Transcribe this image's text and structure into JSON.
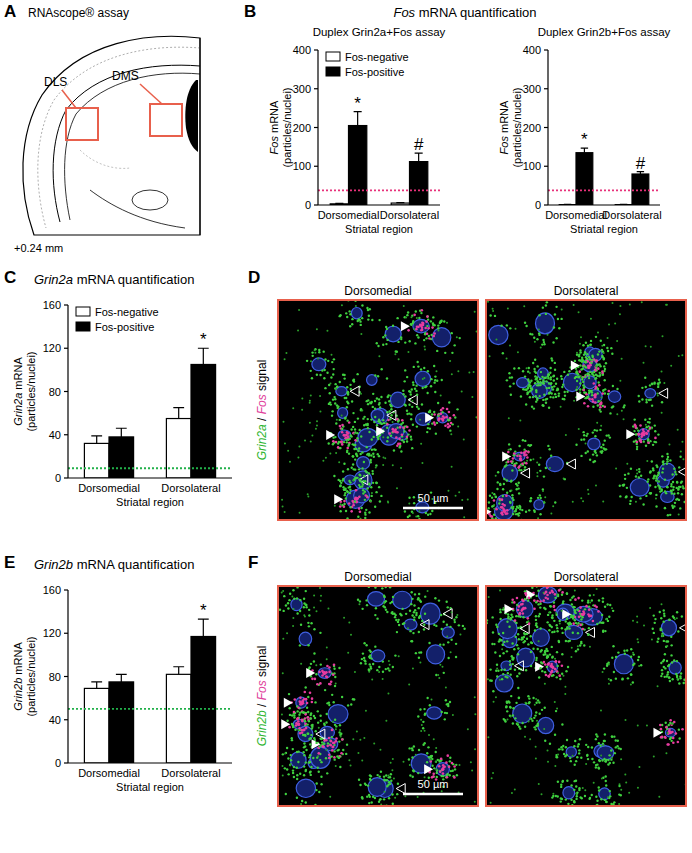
{
  "panel_labels": [
    "A",
    "B",
    "C",
    "D",
    "E",
    "F"
  ],
  "panel_a": {
    "title": "RNAscope® assay",
    "regions": [
      "DLS",
      "DMS"
    ],
    "coordinate": "+0.24 mm",
    "box_color": "#e8604c"
  },
  "chart_data": [
    {
      "type": "bar",
      "title": "Fos mRNA quantification",
      "subtitle": "Duplex Grin2a+Fos assay",
      "ylabel": "Fos mRNA\n(particles/nuclei)",
      "xlabel": "Striatal region",
      "categories": [
        "Dorsomedial",
        "Dorsolateral"
      ],
      "series": [
        {
          "name": "Fos-negative",
          "color": "#ffffff",
          "values": [
            3,
            5
          ],
          "errors": [
            1,
            1
          ]
        },
        {
          "name": "Fos-positive",
          "color": "#000000",
          "values": [
            205,
            112
          ],
          "errors": [
            36,
            22
          ],
          "annotations": [
            "*",
            "#"
          ]
        }
      ],
      "ylim": [
        0,
        400
      ],
      "yticks": [
        0,
        100,
        200,
        300,
        400
      ],
      "legend": "upper left",
      "threshold": {
        "value": 38,
        "color": "#e8317a"
      }
    },
    {
      "type": "bar",
      "subtitle": "Duplex Grin2b+Fos assay",
      "ylabel": "Fos mRNA\n(particles/nuclei)",
      "xlabel": "Striatal region",
      "categories": [
        "Dorsomedial",
        "Dorsolateral"
      ],
      "series": [
        {
          "name": "Fos-negative",
          "color": "#ffffff",
          "values": [
            1,
            1
          ],
          "errors": [
            0.5,
            0.5
          ]
        },
        {
          "name": "Fos-positive",
          "color": "#000000",
          "values": [
            135,
            80
          ],
          "errors": [
            12,
            6
          ],
          "annotations": [
            "*",
            "#"
          ]
        }
      ],
      "ylim": [
        0,
        400
      ],
      "yticks": [
        0,
        100,
        200,
        300,
        400
      ],
      "threshold": {
        "value": 38,
        "color": "#e8317a"
      }
    },
    {
      "type": "bar",
      "title": "Grin2a mRNA quantification",
      "ylabel": "Grin2a mRNA\n(particles/nuclei)",
      "xlabel": "Striatal region",
      "categories": [
        "Dorsomedial",
        "Dorsolateral"
      ],
      "series": [
        {
          "name": "Fos-negative",
          "color": "#ffffff",
          "values": [
            32,
            55
          ],
          "errors": [
            7,
            10
          ]
        },
        {
          "name": "Fos-positive",
          "color": "#000000",
          "values": [
            38,
            105
          ],
          "errors": [
            8,
            15
          ],
          "annotations": [
            null,
            "*"
          ]
        }
      ],
      "ylim": [
        0,
        160
      ],
      "yticks": [
        0,
        40,
        80,
        120,
        160
      ],
      "legend": "upper left",
      "threshold": {
        "value": 9,
        "color": "#22b04a"
      }
    },
    {
      "type": "bar",
      "title": "Grin2b mRNA quantification",
      "ylabel": "Grin2b mRNA\n(particles/nuclei)",
      "xlabel": "Striatal region",
      "categories": [
        "Dorsomedial",
        "Dorsolateral"
      ],
      "series": [
        {
          "name": "Fos-negative",
          "color": "#ffffff",
          "values": [
            69,
            82
          ],
          "errors": [
            6,
            7
          ]
        },
        {
          "name": "Fos-positive",
          "color": "#000000",
          "values": [
            75,
            117
          ],
          "errors": [
            7,
            16
          ],
          "annotations": [
            null,
            "*"
          ]
        }
      ],
      "ylim": [
        0,
        160
      ],
      "yticks": [
        0,
        40,
        80,
        120,
        160
      ],
      "threshold": {
        "value": 50,
        "color": "#22b04a"
      }
    }
  ],
  "panel_d": {
    "channel_label": [
      "Grin2a",
      "/",
      "Fos",
      "signal"
    ],
    "channel_colors": [
      "#2fb52f",
      "#000000",
      "#e0409a",
      "#000000"
    ],
    "images": [
      "Dorsomedial",
      "Dorsolateral"
    ],
    "scale_bar": "50 µm",
    "border_color": "#e8604c"
  },
  "panel_f": {
    "channel_label": [
      "Grin2b",
      "/",
      "Fos",
      "signal"
    ],
    "channel_colors": [
      "#2fb52f",
      "#000000",
      "#e0409a",
      "#000000"
    ],
    "images": [
      "Dorsomedial",
      "Dorsolateral"
    ],
    "scale_bar": "50 µm",
    "border_color": "#e8604c"
  }
}
